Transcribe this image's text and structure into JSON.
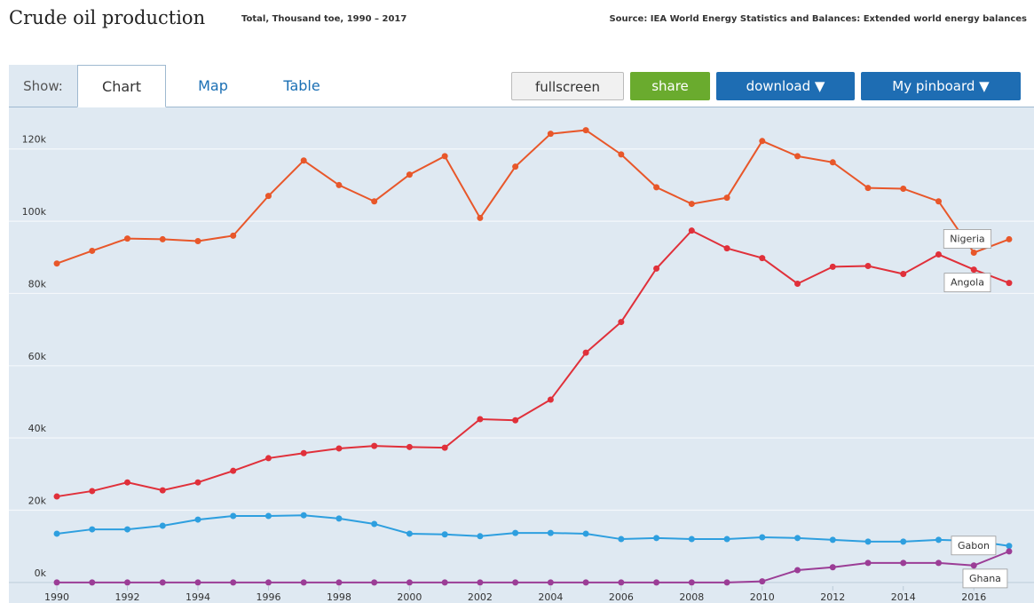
{
  "header": {
    "title": "Crude oil production",
    "subtitle": "Total, Thousand toe, 1990 – 2017",
    "source": "Source: IEA World Energy Statistics and Balances: Extended world energy balances"
  },
  "ui": {
    "show": "Show:",
    "tabs": [
      "Chart",
      "Map",
      "Table"
    ],
    "buttons": [
      "fullscreen",
      "share",
      "download ▼",
      "My pinboard ▼"
    ]
  },
  "chart_data": {
    "type": "line",
    "x": [
      1990,
      1991,
      1992,
      1993,
      1994,
      1995,
      1996,
      1997,
      1998,
      1999,
      2000,
      2001,
      2002,
      2003,
      2004,
      2005,
      2006,
      2007,
      2008,
      2009,
      2010,
      2011,
      2012,
      2013,
      2014,
      2015,
      2016,
      2017
    ],
    "series": [
      {
        "name": "Nigeria",
        "color": "#e8572a",
        "values": [
          88300,
          91800,
          95200,
          95000,
          94500,
          96000,
          107000,
          116800,
          110000,
          105500,
          112900,
          118000,
          100900,
          115100,
          124200,
          125200,
          118500,
          109400,
          104800,
          106500,
          122200,
          118000,
          116300,
          109200,
          109000,
          105500,
          91300,
          95000
        ]
      },
      {
        "name": "Angola",
        "color": "#e0303a",
        "values": [
          23800,
          25300,
          27700,
          25500,
          27700,
          30900,
          34400,
          35800,
          37100,
          37800,
          37500,
          37300,
          45200,
          44900,
          50600,
          63600,
          72100,
          86900,
          97400,
          92500,
          89800,
          82700,
          87400,
          87600,
          85400,
          90800,
          86600,
          82900
        ]
      },
      {
        "name": "Gabon",
        "color": "#2e9fdf",
        "values": [
          13500,
          14700,
          14700,
          15700,
          17400,
          18400,
          18400,
          18600,
          17700,
          16200,
          13500,
          13300,
          12800,
          13700,
          13700,
          13500,
          12000,
          12300,
          12000,
          12000,
          12500,
          12300,
          11800,
          11300,
          11300,
          11800,
          11500,
          10100
        ]
      },
      {
        "name": "Ghana",
        "color": "#9b3d96",
        "values": [
          0,
          0,
          0,
          0,
          0,
          0,
          0,
          0,
          0,
          0,
          0,
          0,
          0,
          0,
          0,
          0,
          0,
          0,
          0,
          0,
          300,
          3400,
          4200,
          5400,
          5400,
          5400,
          4700,
          8600
        ]
      }
    ],
    "xlim": [
      1988.64,
      2017.58
    ],
    "xticks": [
      1990,
      1992,
      1994,
      1996,
      1998,
      2000,
      2002,
      2004,
      2006,
      2008,
      2010,
      2012,
      2014,
      2016
    ],
    "ylim": [
      -2000,
      131000
    ],
    "yticks": [
      {
        "value": 0,
        "label": "0k"
      },
      {
        "value": 20000,
        "label": "20k"
      },
      {
        "value": 40000,
        "label": "40k"
      },
      {
        "value": 60000,
        "label": "60k"
      },
      {
        "value": 80000,
        "label": "80k"
      },
      {
        "value": 100000,
        "label": "100k"
      },
      {
        "value": 120000,
        "label": "120k"
      }
    ],
    "grid": true
  }
}
